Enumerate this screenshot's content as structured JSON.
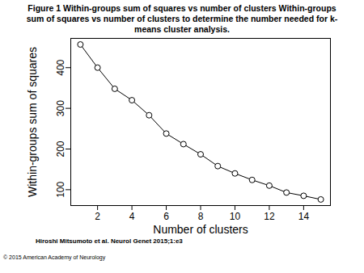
{
  "chart_data": {
    "type": "line",
    "title": "Figure 1 Within-groups sum of squares vs number of clusters Within-groups sum of squares vs number of clusters to determine the number needed for k-means cluster analysis.",
    "x_label": "Number of clusters",
    "y_label": "Within-groups sum of squares",
    "x": [
      1,
      2,
      3,
      4,
      5,
      6,
      7,
      8,
      9,
      10,
      11,
      12,
      13,
      14,
      15
    ],
    "values": [
      457,
      400,
      348,
      320,
      283,
      238,
      212,
      187,
      158,
      140,
      124,
      110,
      93,
      85,
      76
    ],
    "xlim": [
      0.44,
      15.56
    ],
    "ylim": [
      61,
      472
    ],
    "xticks": [
      2,
      4,
      6,
      8,
      10,
      12,
      14
    ],
    "yticks": [
      100,
      200,
      300,
      400
    ],
    "color": "#000000",
    "marker": "circle",
    "line_style": "solid",
    "annotations": [
      "Hiroshi Mitsumoto et al. Neurol Genet 2015;1:e3",
      "© 2015 American Academy of Neurology"
    ]
  }
}
